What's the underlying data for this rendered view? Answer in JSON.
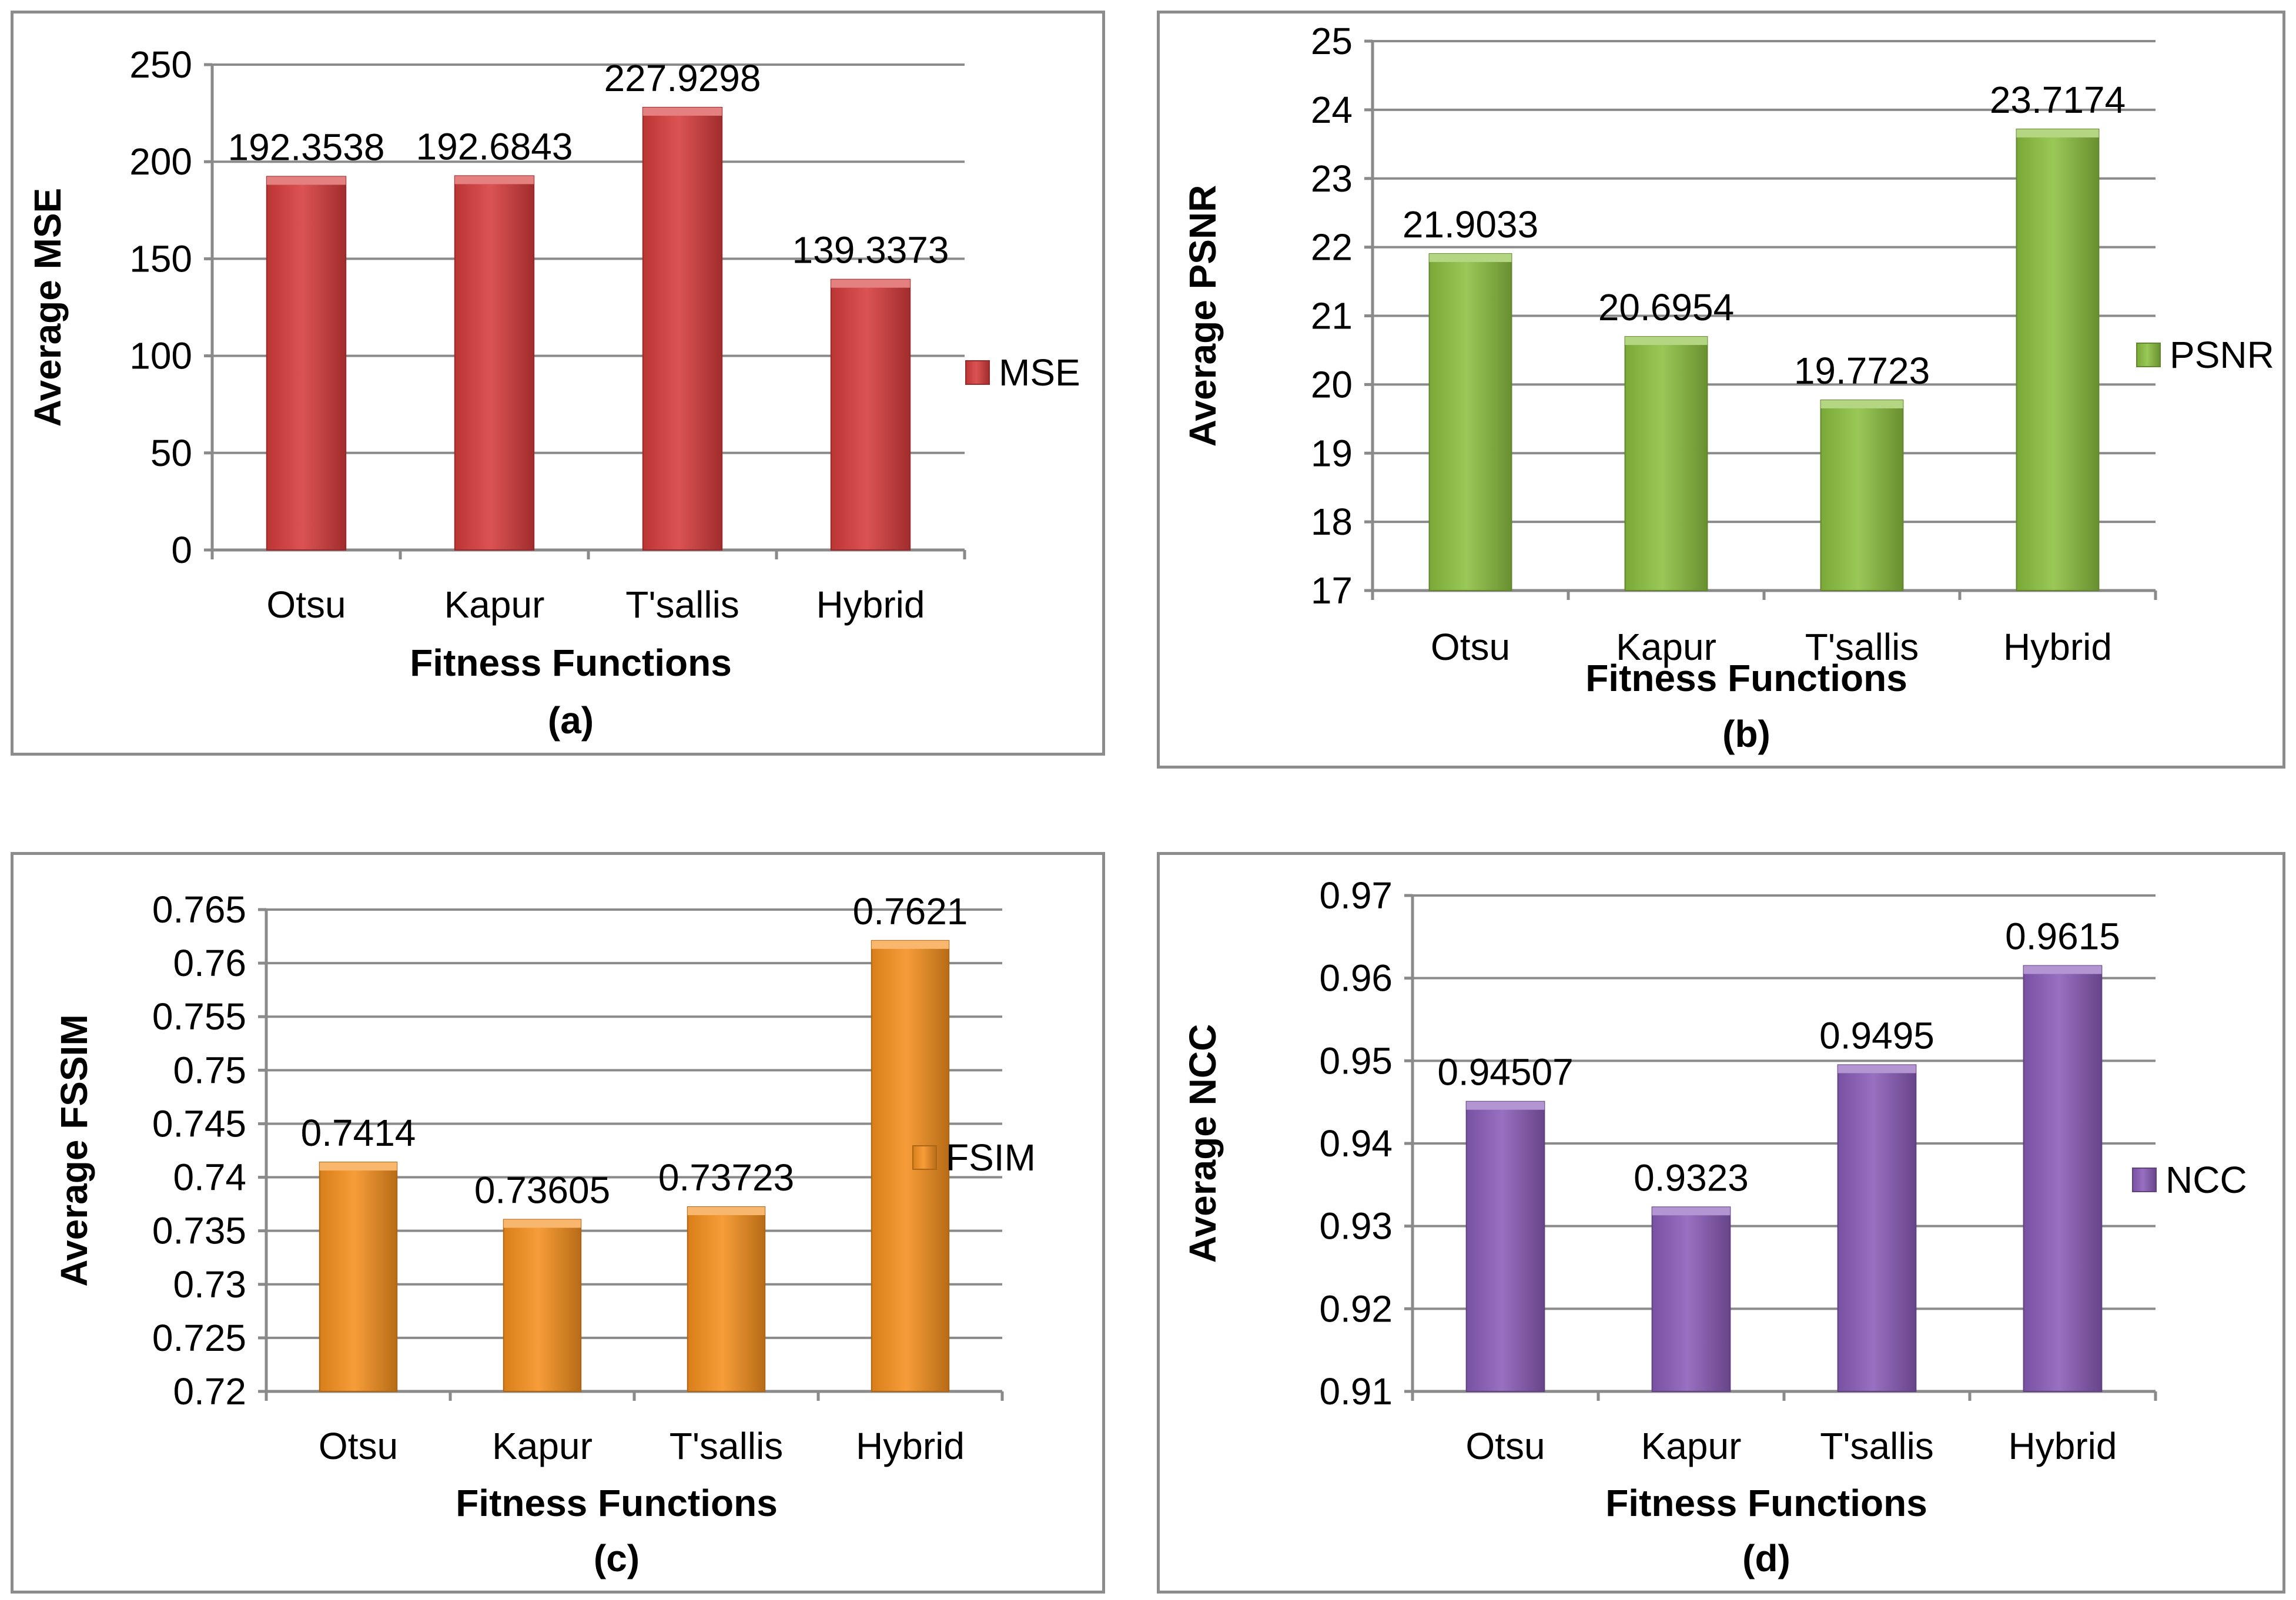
{
  "chart_data": [
    {
      "type": "bar",
      "title": "",
      "caption": "(a)",
      "xlabel": "Fitness Functions",
      "ylabel": "Average MSE",
      "categories": [
        "Otsu",
        "Kapur",
        "T'sallis",
        "Hybrid"
      ],
      "series": [
        {
          "name": "MSE",
          "values": [
            192.3538,
            192.6843,
            227.9298,
            139.3373
          ]
        }
      ],
      "value_labels": [
        "192.3538",
        "192.6843",
        "227.9298",
        "139.3373"
      ],
      "ylim": [
        0,
        250
      ],
      "yticks": [
        "0",
        "50",
        "100",
        "150",
        "200",
        "250"
      ],
      "color": "#d63c3c",
      "grid": true,
      "legend": "right"
    },
    {
      "type": "bar",
      "title": "",
      "caption": "(b)",
      "xlabel": "Fitness Functions",
      "ylabel": "Average PSNR",
      "categories": [
        "Otsu",
        "Kapur",
        "T'sallis",
        "Hybrid"
      ],
      "series": [
        {
          "name": "PSNR",
          "values": [
            21.9033,
            20.6954,
            19.7723,
            23.7174
          ]
        }
      ],
      "value_labels": [
        "21.9033",
        "20.6954",
        "19.7723",
        "23.7174"
      ],
      "ylim": [
        17,
        25
      ],
      "yticks": [
        "17",
        "18",
        "19",
        "20",
        "21",
        "22",
        "23",
        "24",
        "25"
      ],
      "color": "#8cc040",
      "grid": true,
      "legend": "right"
    },
    {
      "type": "bar",
      "title": "",
      "caption": "(c)",
      "xlabel": "Fitness Functions",
      "ylabel": "Average FSSIM",
      "categories": [
        "Otsu",
        "Kapur",
        "T'sallis",
        "Hybrid"
      ],
      "series": [
        {
          "name": "FSIM",
          "values": [
            0.7414,
            0.73605,
            0.73723,
            0.7621
          ]
        }
      ],
      "value_labels": [
        "0.7414",
        "0.73605",
        "0.73723",
        "0.7621"
      ],
      "ylim": [
        0.72,
        0.765
      ],
      "yticks": [
        "0.72",
        "0.725",
        "0.73",
        "0.735",
        "0.74",
        "0.745",
        "0.75",
        "0.755",
        "0.76",
        "0.765"
      ],
      "color": "#f5901e",
      "grid": true,
      "legend": "right"
    },
    {
      "type": "bar",
      "title": "",
      "caption": "(d)",
      "xlabel": "Fitness Functions",
      "ylabel": "Average NCC",
      "categories": [
        "Otsu",
        "Kapur",
        "T'sallis",
        "Hybrid"
      ],
      "series": [
        {
          "name": "NCC",
          "values": [
            0.94507,
            0.9323,
            0.9495,
            0.9615
          ]
        }
      ],
      "value_labels": [
        "0.94507",
        "0.9323",
        "0.9495",
        "0.9615"
      ],
      "ylim": [
        0.91,
        0.97
      ],
      "yticks": [
        "0.91",
        "0.92",
        "0.93",
        "0.94",
        "0.95",
        "0.96",
        "0.97"
      ],
      "color": "#8a5cb8",
      "grid": true,
      "legend": "right"
    }
  ]
}
